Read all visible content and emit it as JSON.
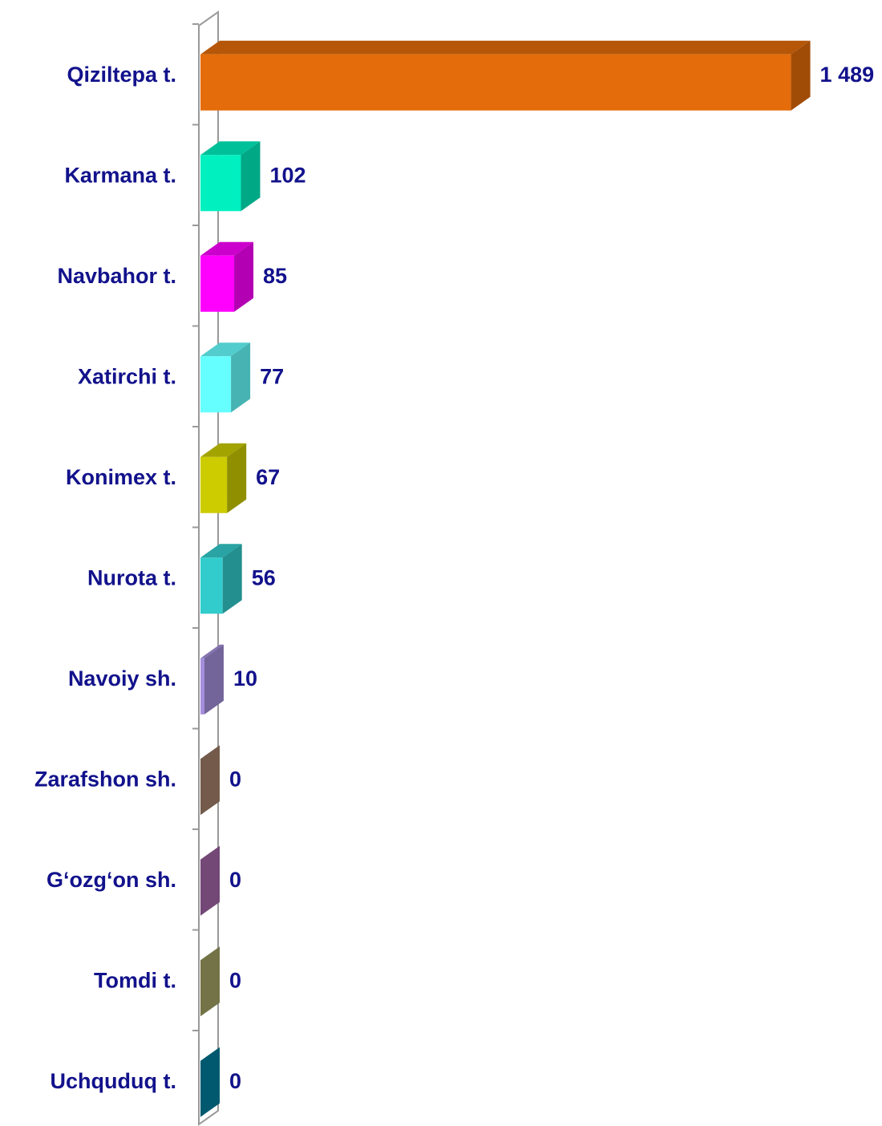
{
  "chart_data": {
    "type": "bar3d_horizontal",
    "categories": [
      "Qiziltepa t.",
      "Karmana t.",
      "Navbahor t.",
      "Xatirchi t.",
      "Konimex t.",
      "Nurota t.",
      "Navoiy sh.",
      "Zarafshon sh.",
      "G‘ozg‘on sh.",
      "Tomdi t.",
      "Uchquduq t."
    ],
    "values": [
      1489,
      102,
      85,
      77,
      67,
      56,
      10,
      0,
      0,
      0,
      0
    ],
    "value_labels": [
      "1 489",
      "102",
      "85",
      "77",
      "67",
      "56",
      "10",
      "0",
      "0",
      "0",
      "0"
    ],
    "colors": [
      "#e46c0a",
      "#00f0c0",
      "#ff00ff",
      "#66ffff",
      "#cccc00",
      "#33cccc",
      "#a58fdc",
      "#a5806a",
      "#a565a8",
      "#a5a565",
      "#007f9f"
    ],
    "xlim": [
      0,
      1500
    ]
  }
}
